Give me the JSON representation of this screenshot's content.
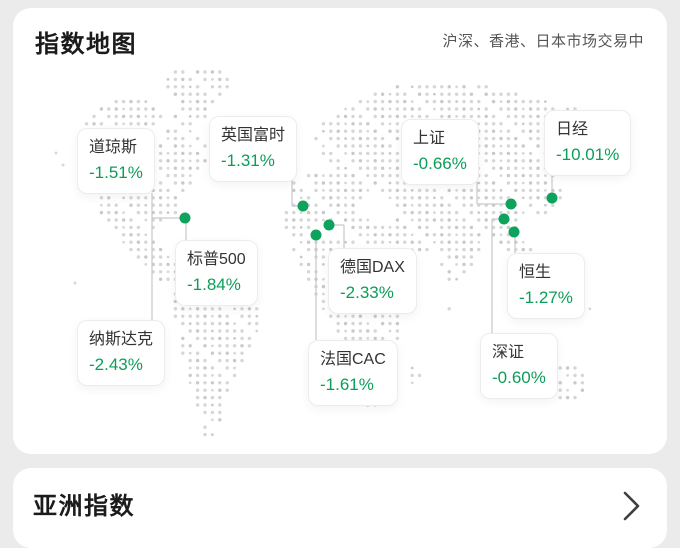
{
  "colors": {
    "change_green": "#0c9e58",
    "marker_dot_green": "#0da35c"
  },
  "index_map_card": {
    "title": "指数地图",
    "status": "沪深、香港、日本市场交易中",
    "markers": [
      {
        "id": "dow",
        "name": "道琼斯",
        "change": "-1.51%"
      },
      {
        "id": "ftse",
        "name": "英国富时",
        "change": "-1.31%"
      },
      {
        "id": "sse",
        "name": "上证",
        "change": "-0.66%"
      },
      {
        "id": "nikkei",
        "name": "日经",
        "change": "-10.01%"
      },
      {
        "id": "sp500",
        "name": "标普500",
        "change": "-1.84%"
      },
      {
        "id": "dax",
        "name": "德国DAX",
        "change": "-2.33%"
      },
      {
        "id": "hsi",
        "name": "恒生",
        "change": "-1.27%"
      },
      {
        "id": "nasdaq",
        "name": "纳斯达克",
        "change": "-2.43%"
      },
      {
        "id": "szse",
        "name": "深证",
        "change": "-0.60%"
      },
      {
        "id": "cac",
        "name": "法国CAC",
        "change": "-1.61%"
      }
    ]
  },
  "asia_index_card": {
    "title": "亚洲指数",
    "more_icon": "chevron-right"
  }
}
